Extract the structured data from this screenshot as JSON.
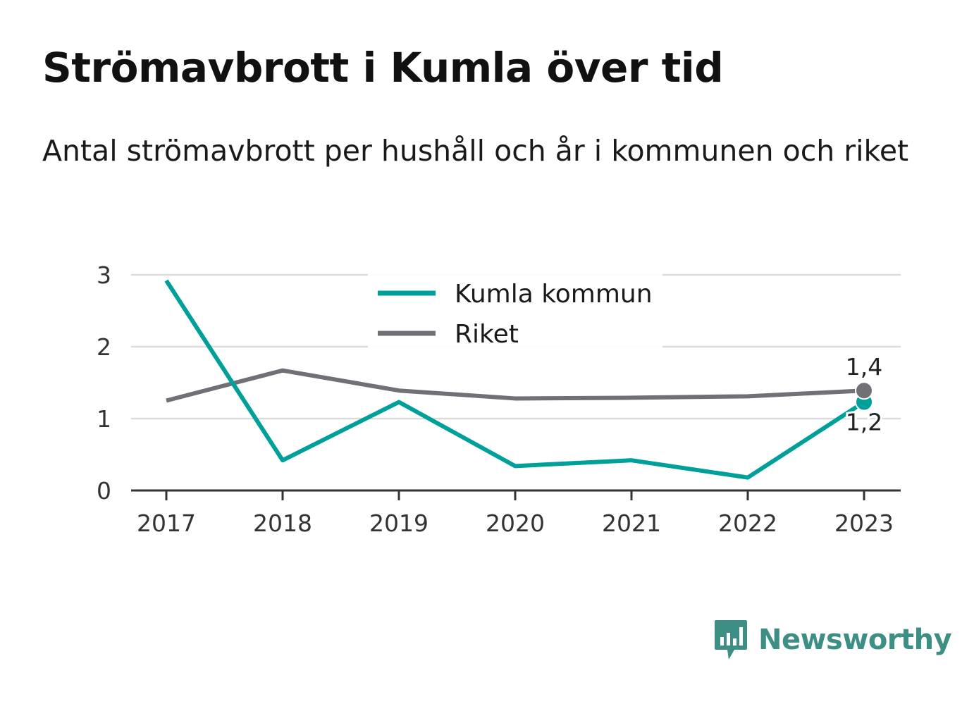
{
  "title": "Strömavbrott i Kumla över tid",
  "subtitle": "Antal strömavbrott per hushåll och år i kommunen och riket",
  "brand": {
    "name": "Newsworthy",
    "color": "#3d8f85",
    "icon": "bar-chart-bubble-icon"
  },
  "chart_data": {
    "type": "line",
    "x": [
      "2017",
      "2018",
      "2019",
      "2020",
      "2021",
      "2022",
      "2023"
    ],
    "ylim": [
      0,
      3
    ],
    "yticks": [
      "0",
      "1",
      "2",
      "3"
    ],
    "grid": true,
    "legend_position": "top-center",
    "series": [
      {
        "name": "Kumla kommun",
        "color": "#00a09a",
        "values": [
          2.92,
          0.42,
          1.23,
          0.34,
          0.42,
          0.18,
          1.23
        ],
        "end_label": "1,2"
      },
      {
        "name": "Riket",
        "color": "#727077",
        "values": [
          1.25,
          1.67,
          1.39,
          1.28,
          1.29,
          1.31,
          1.39
        ],
        "end_label": "1,4"
      }
    ]
  }
}
